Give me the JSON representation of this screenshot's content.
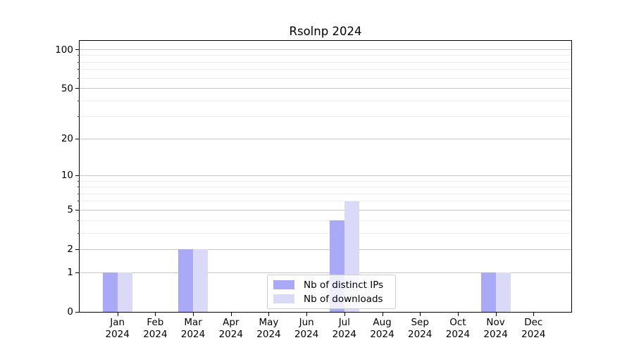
{
  "chart_data": {
    "type": "bar",
    "title": "Rsolnp 2024",
    "categories": [
      "Jan 2024",
      "Feb 2024",
      "Mar 2024",
      "Apr 2024",
      "May 2024",
      "Jun 2024",
      "Jul 2024",
      "Aug 2024",
      "Sep 2024",
      "Oct 2024",
      "Nov 2024",
      "Dec 2024"
    ],
    "x_tick_line1": [
      "Jan",
      "Feb",
      "Mar",
      "Apr",
      "May",
      "Jun",
      "Jul",
      "Aug",
      "Sep",
      "Oct",
      "Nov",
      "Dec"
    ],
    "x_tick_line2": "2024",
    "series": [
      {
        "name": "Nb of distinct IPs",
        "color": "#a9a9f7",
        "values": [
          1,
          0,
          2,
          0,
          0,
          0,
          4,
          0,
          0,
          0,
          1,
          0
        ]
      },
      {
        "name": "Nb of downloads",
        "color": "#dadaf8",
        "values": [
          1,
          0,
          2,
          0,
          0,
          0,
          6,
          0,
          0,
          0,
          1,
          0
        ]
      }
    ],
    "yscale": "log1p",
    "ylim": [
      0,
      117
    ],
    "y_major_ticks": [
      0,
      1,
      2,
      5,
      10,
      20,
      50,
      100
    ],
    "y_minor_gridlines": [
      3,
      4,
      6,
      7,
      8,
      9,
      30,
      40,
      60,
      70,
      80,
      90
    ],
    "xlabel": "",
    "ylabel": "",
    "grid": "horizontal major+minor",
    "legend_position": "lower center",
    "colors": {
      "major_grid": "#c6c6c6",
      "minor_grid": "#ececec",
      "axis": "#000000",
      "background": "#ffffff"
    }
  }
}
